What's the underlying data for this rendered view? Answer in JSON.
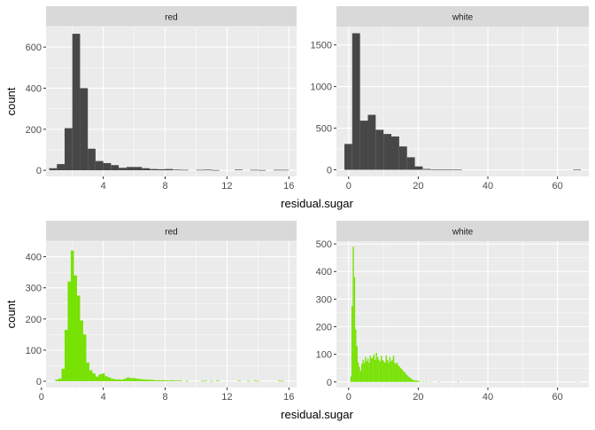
{
  "figure": {
    "ylabel": "count",
    "xlabel": "residual.sugar"
  },
  "colors": {
    "panel_bg": "#EBEBEB",
    "strip_bg": "#D9D9D9",
    "grid": "#FFFFFF",
    "tick_text": "#4D4D4D",
    "bar_dark": "#474747",
    "bar_green": "#76E200"
  },
  "chart_data": [
    {
      "type": "bar",
      "row": "top",
      "facet": "red",
      "bar_color": "#474747",
      "xlim": [
        0.3,
        16.5
      ],
      "ylim": [
        -30,
        700
      ],
      "xticks": [
        4,
        8,
        12,
        16
      ],
      "yticks": [
        0,
        200,
        400,
        600
      ],
      "bin_width": 0.5,
      "bins": [
        [
          0.75,
          10
        ],
        [
          1.25,
          30
        ],
        [
          1.75,
          205
        ],
        [
          2.25,
          665
        ],
        [
          2.75,
          400
        ],
        [
          3.25,
          105
        ],
        [
          3.75,
          45
        ],
        [
          4.25,
          35
        ],
        [
          4.75,
          25
        ],
        [
          5.25,
          12
        ],
        [
          5.75,
          16
        ],
        [
          6.25,
          16
        ],
        [
          6.75,
          10
        ],
        [
          7.25,
          6
        ],
        [
          7.75,
          5
        ],
        [
          8.25,
          6
        ],
        [
          8.75,
          3
        ],
        [
          9.25,
          2
        ],
        [
          10.25,
          2
        ],
        [
          10.75,
          3
        ],
        [
          11.25,
          1
        ],
        [
          12.75,
          3
        ],
        [
          13.75,
          2
        ],
        [
          14.25,
          1
        ],
        [
          15.25,
          2
        ],
        [
          15.75,
          2
        ]
      ]
    },
    {
      "type": "bar",
      "row": "top",
      "facet": "white",
      "bar_color": "#474747",
      "xlim": [
        -3.5,
        69
      ],
      "ylim": [
        -80,
        1720
      ],
      "xticks": [
        0,
        20,
        40,
        60
      ],
      "yticks": [
        0,
        500,
        1000,
        1500
      ],
      "bin_width": 2.25,
      "bins": [
        [
          -0.1,
          310
        ],
        [
          2.15,
          1640
        ],
        [
          4.4,
          590
        ],
        [
          6.65,
          660
        ],
        [
          8.9,
          480
        ],
        [
          11.15,
          430
        ],
        [
          13.4,
          400
        ],
        [
          15.65,
          280
        ],
        [
          17.9,
          150
        ],
        [
          20.15,
          40
        ],
        [
          22.4,
          10
        ],
        [
          24.65,
          5
        ],
        [
          26.9,
          3
        ],
        [
          29.15,
          3
        ],
        [
          31.4,
          2
        ],
        [
          65.6,
          1
        ]
      ]
    },
    {
      "type": "bar",
      "row": "bottom",
      "facet": "red",
      "bar_color": "#76E200",
      "xlim": [
        0.3,
        16.5
      ],
      "ylim": [
        -20,
        450
      ],
      "xticks": [
        0,
        4,
        8,
        12,
        16
      ],
      "yticks": [
        0,
        100,
        200,
        300,
        400
      ],
      "bin_width": 0.2,
      "bins": [
        [
          1.0,
          5
        ],
        [
          1.2,
          8
        ],
        [
          1.4,
          40
        ],
        [
          1.6,
          165
        ],
        [
          1.8,
          320
        ],
        [
          2.0,
          420
        ],
        [
          2.2,
          340
        ],
        [
          2.4,
          275
        ],
        [
          2.6,
          195
        ],
        [
          2.8,
          150
        ],
        [
          3.0,
          60
        ],
        [
          3.2,
          35
        ],
        [
          3.4,
          25
        ],
        [
          3.6,
          15
        ],
        [
          3.8,
          22
        ],
        [
          4.0,
          25
        ],
        [
          4.2,
          16
        ],
        [
          4.4,
          12
        ],
        [
          4.6,
          8
        ],
        [
          4.8,
          6
        ],
        [
          5.0,
          6
        ],
        [
          5.2,
          5
        ],
        [
          5.4,
          8
        ],
        [
          5.6,
          12
        ],
        [
          5.8,
          10
        ],
        [
          6.0,
          10
        ],
        [
          6.2,
          8
        ],
        [
          6.4,
          7
        ],
        [
          6.6,
          6
        ],
        [
          6.8,
          5
        ],
        [
          7.0,
          5
        ],
        [
          7.2,
          4
        ],
        [
          7.4,
          3
        ],
        [
          7.6,
          3
        ],
        [
          7.8,
          3
        ],
        [
          8.0,
          3
        ],
        [
          8.2,
          2
        ],
        [
          8.4,
          3
        ],
        [
          8.6,
          2
        ],
        [
          8.8,
          2
        ],
        [
          9.0,
          2
        ],
        [
          9.4,
          1
        ],
        [
          10.4,
          1
        ],
        [
          10.6,
          2
        ],
        [
          11.0,
          1
        ],
        [
          11.4,
          2
        ],
        [
          12.8,
          2
        ],
        [
          13.4,
          1
        ],
        [
          13.8,
          2
        ],
        [
          14.0,
          1
        ],
        [
          15.4,
          2
        ],
        [
          15.6,
          1
        ]
      ]
    },
    {
      "type": "bar",
      "row": "bottom",
      "facet": "white",
      "bar_color": "#76E200",
      "xlim": [
        -3.5,
        69
      ],
      "ylim": [
        -20,
        510
      ],
      "xticks": [
        0,
        20,
        40,
        60
      ],
      "yticks": [
        0,
        100,
        200,
        300,
        400,
        500
      ],
      "bin_width": 0.35,
      "bins": [
        [
          0.7,
          20
        ],
        [
          1.0,
          275
        ],
        [
          1.35,
          490
        ],
        [
          1.7,
          380
        ],
        [
          2.05,
          190
        ],
        [
          2.4,
          130
        ],
        [
          2.75,
          70
        ],
        [
          3.1,
          55
        ],
        [
          3.45,
          40
        ],
        [
          3.8,
          65
        ],
        [
          4.15,
          80
        ],
        [
          4.5,
          70
        ],
        [
          4.85,
          90
        ],
        [
          5.2,
          75
        ],
        [
          5.55,
          85
        ],
        [
          5.9,
          70
        ],
        [
          6.25,
          95
        ],
        [
          6.6,
          85
        ],
        [
          6.95,
          90
        ],
        [
          7.3,
          100
        ],
        [
          7.65,
          80
        ],
        [
          8.0,
          105
        ],
        [
          8.35,
          90
        ],
        [
          8.7,
          80
        ],
        [
          9.05,
          75
        ],
        [
          9.4,
          95
        ],
        [
          9.75,
          80
        ],
        [
          10.1,
          75
        ],
        [
          10.45,
          70
        ],
        [
          10.8,
          95
        ],
        [
          11.15,
          80
        ],
        [
          11.5,
          70
        ],
        [
          11.85,
          90
        ],
        [
          12.2,
          75
        ],
        [
          12.55,
          80
        ],
        [
          12.9,
          95
        ],
        [
          13.25,
          70
        ],
        [
          13.6,
          65
        ],
        [
          13.95,
          70
        ],
        [
          14.3,
          60
        ],
        [
          14.65,
          55
        ],
        [
          15.0,
          50
        ],
        [
          15.35,
          45
        ],
        [
          15.7,
          40
        ],
        [
          16.05,
          35
        ],
        [
          16.4,
          30
        ],
        [
          16.75,
          25
        ],
        [
          17.1,
          20
        ],
        [
          17.45,
          18
        ],
        [
          17.8,
          14
        ],
        [
          18.15,
          10
        ],
        [
          18.5,
          8
        ],
        [
          18.85,
          6
        ],
        [
          19.2,
          5
        ],
        [
          19.55,
          5
        ],
        [
          19.9,
          4
        ],
        [
          20.25,
          3
        ],
        [
          21.3,
          2
        ],
        [
          22.4,
          2
        ],
        [
          23.5,
          2
        ],
        [
          26.0,
          1
        ],
        [
          31.5,
          3
        ],
        [
          65.8,
          1
        ]
      ]
    }
  ]
}
